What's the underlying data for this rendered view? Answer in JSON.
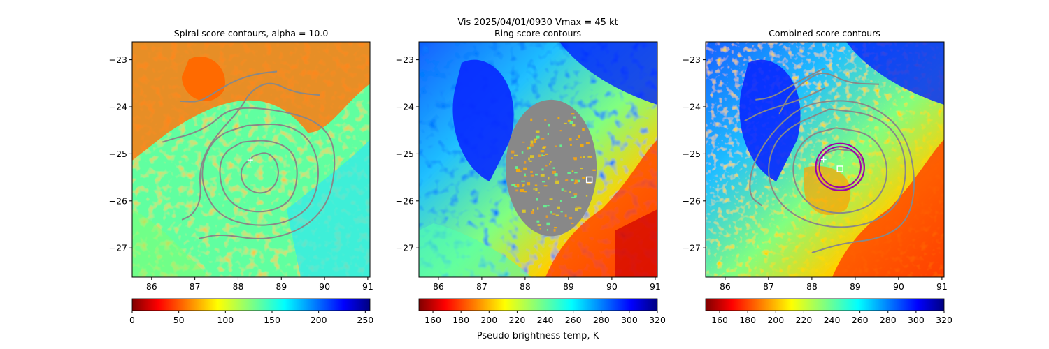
{
  "figure": {
    "suptitle_line1": "Vis  2025/04/01/0930    Vmax = 45 kt",
    "colorbar_shared_label": "Pseudo brightness temp, K"
  },
  "chart_data": [
    {
      "type": "heatmap",
      "title": "Spiral score contours, alpha = 10.0",
      "xlim": [
        85.55,
        91.05
      ],
      "ylim": [
        -27.62,
        -22.62
      ],
      "xticks": [
        86,
        87,
        88,
        89,
        90,
        91
      ],
      "xtick_labels": [
        "86",
        "87",
        "88",
        "89",
        "90",
        "91"
      ],
      "yticks": [
        -23,
        -24,
        -25,
        -26,
        -27
      ],
      "ytick_labels": [
        "−23",
        "−24",
        "−25",
        "−26",
        "−27"
      ],
      "colormap": "jet_r",
      "colorbar": {
        "min": 0,
        "max": 255,
        "ticks": [
          0,
          50,
          100,
          150,
          200,
          250
        ],
        "tick_labels": [
          "0",
          "50",
          "100",
          "150",
          "200",
          "250"
        ]
      },
      "contour_color": "#888888",
      "contours": [
        [
          [
            88.35,
            -25.05
          ],
          [
            88.65,
            -24.95
          ],
          [
            88.9,
            -25.15
          ],
          [
            88.95,
            -25.5
          ],
          [
            88.75,
            -25.8
          ],
          [
            88.4,
            -25.85
          ],
          [
            88.1,
            -25.65
          ],
          [
            88.05,
            -25.3
          ],
          [
            88.35,
            -25.05
          ]
        ],
        [
          [
            88.1,
            -24.75
          ],
          [
            88.7,
            -24.7
          ],
          [
            89.25,
            -24.9
          ],
          [
            89.4,
            -25.4
          ],
          [
            89.25,
            -26.0
          ],
          [
            88.7,
            -26.25
          ],
          [
            88.05,
            -26.2
          ],
          [
            87.65,
            -25.85
          ],
          [
            87.55,
            -25.3
          ],
          [
            87.7,
            -24.95
          ],
          [
            88.1,
            -24.75
          ]
        ],
        [
          [
            88.2,
            -24.4
          ],
          [
            89.05,
            -24.35
          ],
          [
            89.65,
            -24.65
          ],
          [
            89.9,
            -25.3
          ],
          [
            89.75,
            -26.05
          ],
          [
            89.2,
            -26.45
          ],
          [
            88.4,
            -26.55
          ],
          [
            87.6,
            -26.35
          ],
          [
            87.2,
            -25.8
          ],
          [
            87.15,
            -25.2
          ],
          [
            87.5,
            -24.6
          ],
          [
            88.2,
            -24.4
          ]
        ],
        [
          [
            87.1,
            -26.8
          ],
          [
            87.6,
            -26.7
          ],
          [
            88.6,
            -26.85
          ],
          [
            89.5,
            -26.6
          ],
          [
            90.05,
            -26.1
          ],
          [
            90.25,
            -25.4
          ],
          [
            90.2,
            -24.7
          ],
          [
            89.8,
            -24.3
          ],
          [
            89.1,
            -24.1
          ],
          [
            88.2,
            -24.0
          ],
          [
            87.7,
            -24.1
          ],
          [
            87.35,
            -24.4
          ],
          [
            86.85,
            -24.6
          ],
          [
            86.6,
            -24.65
          ],
          [
            86.25,
            -24.75
          ]
        ],
        [
          [
            86.7,
            -26.4
          ],
          [
            86.95,
            -26.3
          ],
          [
            87.15,
            -25.95
          ],
          [
            87.1,
            -25.4
          ],
          [
            87.25,
            -24.95
          ],
          [
            87.55,
            -24.55
          ],
          [
            88.05,
            -24.05
          ],
          [
            88.3,
            -23.65
          ],
          [
            88.75,
            -23.45
          ],
          [
            89.3,
            -23.7
          ],
          [
            89.9,
            -23.75
          ]
        ],
        [
          [
            86.65,
            -23.88
          ],
          [
            87.1,
            -23.9
          ],
          [
            87.45,
            -23.7
          ],
          [
            87.9,
            -23.45
          ],
          [
            88.4,
            -23.3
          ],
          [
            88.9,
            -23.25
          ]
        ]
      ],
      "markers": [
        {
          "type": "plus",
          "x": 88.28,
          "y": -25.13,
          "color": "#ffffff"
        }
      ]
    },
    {
      "type": "heatmap",
      "title": "Ring score contours",
      "xlim": [
        85.55,
        91.05
      ],
      "ylim": [
        -27.62,
        -22.62
      ],
      "xticks": [
        86,
        87,
        88,
        89,
        90,
        91
      ],
      "xtick_labels": [
        "86",
        "87",
        "88",
        "89",
        "90",
        "91"
      ],
      "yticks": [
        -23,
        -24,
        -25,
        -26,
        -27
      ],
      "ytick_labels": [
        "−23",
        "−24",
        "−25",
        "−26",
        "−27"
      ],
      "colormap": "jet_r",
      "colorbar": {
        "min": 150,
        "max": 320,
        "ticks": [
          160,
          180,
          200,
          220,
          240,
          260,
          280,
          300,
          320
        ],
        "tick_labels": [
          "160",
          "180",
          "200",
          "220",
          "240",
          "260",
          "280",
          "300",
          "320"
        ]
      },
      "ring_score_disc": {
        "center": [
          88.6,
          -25.3
        ],
        "radius_x_deg": 1.05,
        "radius_y_deg": 1.45,
        "fill": "#888888"
      },
      "markers": [
        {
          "type": "square",
          "x": 89.48,
          "y": -25.55,
          "color": "#ffffff"
        }
      ]
    },
    {
      "type": "heatmap",
      "title": "Combined score contours",
      "xlim": [
        85.55,
        91.05
      ],
      "ylim": [
        -27.62,
        -22.62
      ],
      "xticks": [
        86,
        87,
        88,
        89,
        90,
        91
      ],
      "xtick_labels": [
        "86",
        "87",
        "88",
        "89",
        "90",
        "91"
      ],
      "yticks": [
        -23,
        -24,
        -25,
        -26,
        -27
      ],
      "ytick_labels": [
        "−23",
        "−24",
        "−25",
        "−26",
        "−27"
      ],
      "colormap": "jet_r",
      "colorbar": {
        "min": 150,
        "max": 320,
        "ticks": [
          160,
          180,
          200,
          220,
          240,
          260,
          280,
          300,
          320
        ],
        "tick_labels": [
          "160",
          "180",
          "200",
          "220",
          "240",
          "260",
          "280",
          "300",
          "320"
        ]
      },
      "contour_color": "#888888",
      "contours": [
        [
          [
            88.6,
            -24.9
          ],
          [
            89.05,
            -24.95
          ],
          [
            89.25,
            -25.3
          ],
          [
            89.1,
            -25.65
          ],
          [
            88.65,
            -25.8
          ],
          [
            88.2,
            -25.65
          ],
          [
            88.05,
            -25.3
          ],
          [
            88.25,
            -25.0
          ],
          [
            88.6,
            -24.9
          ]
        ],
        [
          [
            88.55,
            -24.45
          ],
          [
            89.3,
            -24.55
          ],
          [
            89.7,
            -25.0
          ],
          [
            89.75,
            -25.6
          ],
          [
            89.4,
            -26.1
          ],
          [
            88.7,
            -26.3
          ],
          [
            88.0,
            -26.15
          ],
          [
            87.6,
            -25.7
          ],
          [
            87.55,
            -25.1
          ],
          [
            87.9,
            -24.6
          ],
          [
            88.55,
            -24.45
          ]
        ],
        [
          [
            88.4,
            -24.05
          ],
          [
            89.4,
            -24.15
          ],
          [
            90.0,
            -24.6
          ],
          [
            90.2,
            -25.3
          ],
          [
            90.05,
            -26.0
          ],
          [
            89.5,
            -26.45
          ],
          [
            88.6,
            -26.6
          ],
          [
            87.7,
            -26.4
          ],
          [
            87.1,
            -25.9
          ],
          [
            86.95,
            -25.2
          ],
          [
            87.3,
            -24.5
          ],
          [
            88.4,
            -24.05
          ]
        ],
        [
          [
            88.0,
            -27.1
          ],
          [
            88.7,
            -26.9
          ],
          [
            89.6,
            -26.8
          ],
          [
            90.2,
            -26.45
          ],
          [
            90.4,
            -25.7
          ],
          [
            90.25,
            -24.8
          ],
          [
            89.8,
            -24.2
          ],
          [
            89.0,
            -23.85
          ],
          [
            88.0,
            -23.9
          ],
          [
            87.45,
            -24.2
          ],
          [
            86.95,
            -24.7
          ],
          [
            86.6,
            -25.3
          ],
          [
            86.55,
            -25.9
          ],
          [
            86.85,
            -26.1
          ]
        ],
        [
          [
            86.45,
            -24.3
          ],
          [
            86.85,
            -24.1
          ],
          [
            87.4,
            -23.95
          ],
          [
            87.85,
            -23.8
          ],
          [
            88.3,
            -23.6
          ]
        ],
        [
          [
            87.25,
            -24.15
          ],
          [
            87.5,
            -23.7
          ],
          [
            88.0,
            -23.35
          ],
          [
            88.3,
            -23.25
          ],
          [
            88.85,
            -23.5
          ],
          [
            89.55,
            -23.52
          ]
        ],
        [
          [
            86.7,
            -23.85
          ],
          [
            87.1,
            -23.8
          ],
          [
            87.7,
            -23.45
          ],
          [
            88.3,
            -23.18
          ]
        ]
      ],
      "position_circles": [
        {
          "center": [
            88.65,
            -25.28
          ],
          "radius_x_deg": 0.56,
          "radius_y_deg": 0.5,
          "color": "#a000a8"
        },
        {
          "center": [
            88.65,
            -25.28
          ],
          "radius_x_deg": 0.48,
          "radius_y_deg": 0.43,
          "color": "#a000a8"
        }
      ],
      "markers": [
        {
          "type": "plus",
          "x": 88.27,
          "y": -25.12,
          "color": "#ffffff"
        },
        {
          "type": "square",
          "x": 88.65,
          "y": -25.32,
          "color": "#ffffff"
        }
      ]
    }
  ]
}
